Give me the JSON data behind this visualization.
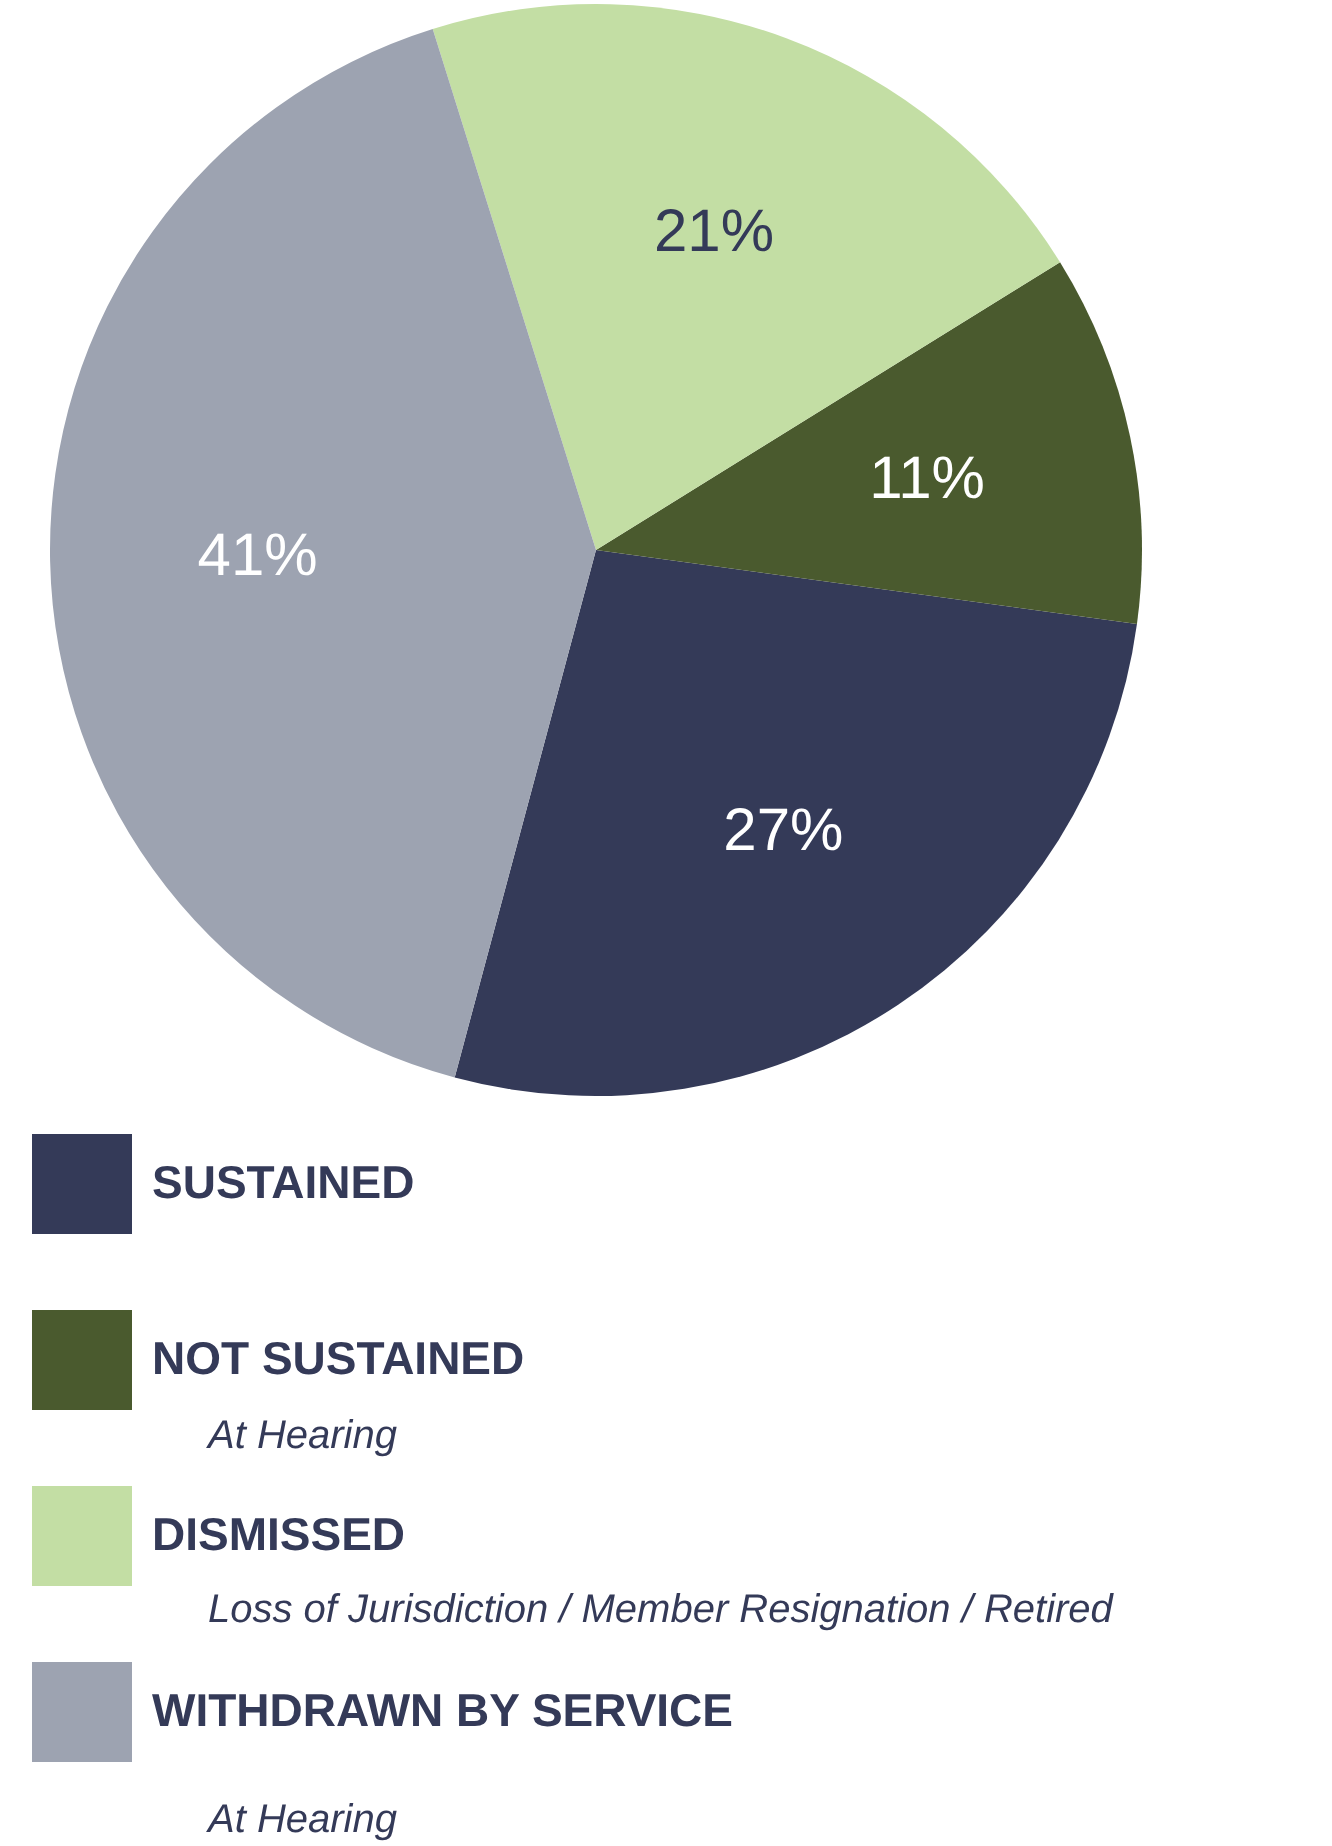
{
  "chart_data": {
    "type": "pie",
    "categories": [
      "SUSTAINED",
      "NOT SUSTAINED",
      "DISMISSED",
      "WITHDRAWN BY SERVICE"
    ],
    "values": [
      27,
      11,
      21,
      41
    ],
    "colors": [
      "#343a58",
      "#4a5a2e",
      "#c3dea4",
      "#9da3b1"
    ],
    "value_labels": [
      "27%",
      "11%",
      "21%",
      "41%"
    ],
    "legend": "bottom left",
    "annotations": [
      "At Hearing",
      "Loss of Jurisdiction / Member Resignation / Retired",
      "At Hearing"
    ]
  }
}
